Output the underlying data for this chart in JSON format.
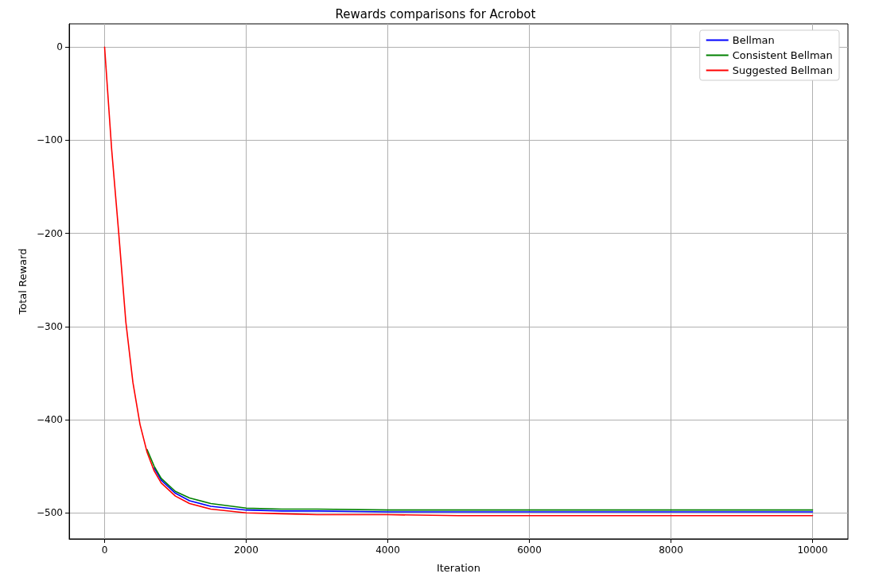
{
  "chart_data": {
    "type": "line",
    "title": "Rewards comparisons for Acrobot",
    "xlabel": "Iteration",
    "ylabel": "Total Reward",
    "x": [
      0,
      100,
      200,
      300,
      400,
      500,
      600,
      700,
      800,
      1000,
      1200,
      1500,
      2000,
      2500,
      3000,
      4000,
      5000,
      6000,
      8000,
      10000
    ],
    "series": [
      {
        "name": "Bellman",
        "color": "#0000ff",
        "values": [
          null,
          null,
          null,
          null,
          null,
          null,
          null,
          -452,
          -465,
          -479,
          -487,
          -493,
          -497,
          -498,
          -498,
          -499,
          -499,
          -499,
          -499,
          -499
        ]
      },
      {
        "name": "Consistent Bellman",
        "color": "#008000",
        "values": [
          null,
          null,
          null,
          null,
          null,
          null,
          -432,
          -450,
          -463,
          -477,
          -484,
          -490,
          -495,
          -496,
          -496,
          -497,
          -497,
          -497,
          -497,
          -497
        ]
      },
      {
        "name": "Suggested Bellman",
        "color": "#ff0000",
        "values": [
          0,
          -110,
          -200,
          -295,
          -360,
          -405,
          -435,
          -455,
          -468,
          -482,
          -490,
          -496,
          -500,
          -501,
          -502,
          -502,
          -503,
          -503,
          -503,
          -503
        ]
      }
    ],
    "xlim": [
      -500,
      10500
    ],
    "ylim": [
      -528,
      25
    ],
    "xticks": [
      0,
      2000,
      4000,
      6000,
      8000,
      10000
    ],
    "yticks": [
      {
        "value": -500,
        "label": "−500"
      },
      {
        "value": -400,
        "label": "−400"
      },
      {
        "value": -300,
        "label": "−300"
      },
      {
        "value": -200,
        "label": "−200"
      },
      {
        "value": -100,
        "label": "−100"
      },
      0
    ],
    "grid": true,
    "legend": "top right",
    "marker": "none",
    "line_style": "solid"
  }
}
